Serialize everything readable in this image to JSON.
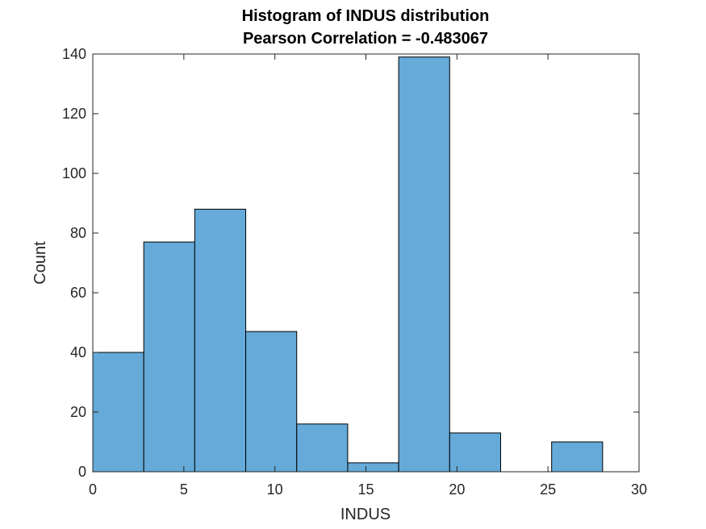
{
  "chart_data": {
    "type": "bar",
    "title": "Histogram of INDUS distribution",
    "subtitle": "Pearson Correlation = -0.483067",
    "xlabel": "INDUS",
    "ylabel": "Count",
    "xlim": [
      0,
      30
    ],
    "ylim": [
      0,
      140
    ],
    "xticks": [
      0,
      5,
      10,
      15,
      20,
      25,
      30
    ],
    "yticks": [
      0,
      20,
      40,
      60,
      80,
      100,
      120,
      140
    ],
    "bin_edges": [
      0,
      2.8,
      5.6,
      8.4,
      11.2,
      14.0,
      16.8,
      19.6,
      22.4,
      25.2,
      28.0
    ],
    "values": [
      40,
      77,
      88,
      47,
      16,
      3,
      139,
      13,
      0,
      10
    ],
    "grid": false,
    "colors": {
      "bar_fill": "#65aad8",
      "bar_edge": "#000000",
      "axis": "#262626"
    }
  }
}
